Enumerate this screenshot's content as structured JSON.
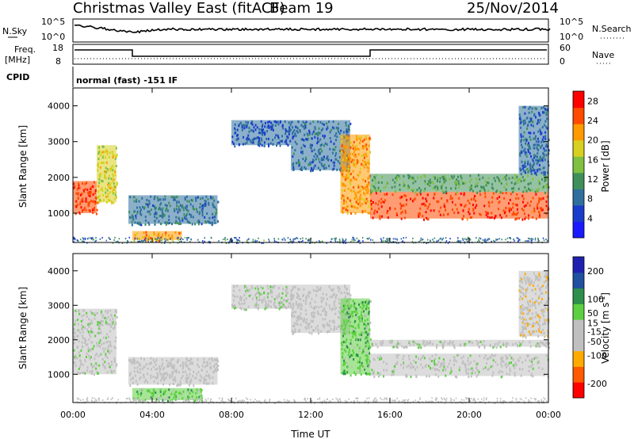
{
  "header": {
    "station_title": "Christmas Valley East (fitACF)",
    "beam_label": "Beam 19",
    "date": "25/Nov/2014"
  },
  "noise_panel": {
    "left_label": "N.Sky",
    "right_label": "N.Search",
    "ticks_left": [
      "10^5",
      "10^0"
    ],
    "ticks_right": [
      "10^5",
      "10^0"
    ]
  },
  "freq_panel": {
    "left_label_line1": "Freq.",
    "left_label_line2": "[MHz]",
    "right_label": "Nave",
    "ticks_left": [
      "18",
      "8"
    ],
    "ticks_right": [
      "60",
      "0"
    ]
  },
  "cpid": {
    "label": "CPID",
    "mode_text": "normal (fast) -151 IF"
  },
  "time_axis": {
    "label": "Time UT",
    "ticks": [
      "00:00",
      "04:00",
      "08:00",
      "12:00",
      "16:00",
      "20:00",
      "00:00"
    ]
  },
  "colors": {
    "power_scale": [
      "#1a1aff",
      "#1a3ccc",
      "#2e6f9e",
      "#3f8f5a",
      "#7fc040",
      "#d7d020",
      "#ff9a00",
      "#ff4a00",
      "#ff0000"
    ],
    "velocity_scale": [
      "#ff0000",
      "#ff5a00",
      "#ffaa00",
      "#c0c0c0",
      "#c0c0c0",
      "#5cd040",
      "#2e8f4a",
      "#2050a0",
      "#2020b0"
    ]
  },
  "chart_data": [
    {
      "type": "heatmap",
      "title": "",
      "xlabel": "Time UT",
      "ylabel": "Slant Range [km]",
      "xlim": [
        "00:00",
        "24:00"
      ],
      "ylim": [
        180,
        4500
      ],
      "y_ticks": [
        1000,
        2000,
        3000,
        4000
      ],
      "colorbar": {
        "label": "Power [dB]",
        "ticks": [
          4,
          8,
          12,
          16,
          20,
          24,
          28
        ],
        "range": [
          0,
          30
        ]
      },
      "regions": [
        {
          "t0": 0.0,
          "t1": 1.2,
          "r0": 1000,
          "r1": 1900,
          "value": 26
        },
        {
          "t0": 1.2,
          "t1": 2.2,
          "r0": 1300,
          "r1": 2900,
          "value": 18
        },
        {
          "t0": 2.8,
          "t1": 7.3,
          "r0": 700,
          "r1": 1500,
          "value": 9
        },
        {
          "t0": 3.0,
          "t1": 5.5,
          "r0": 250,
          "r1": 500,
          "value": 22
        },
        {
          "t0": 8.0,
          "t1": 11.0,
          "r0": 2900,
          "r1": 3600,
          "value": 7
        },
        {
          "t0": 11.0,
          "t1": 14.0,
          "r0": 2200,
          "r1": 3600,
          "value": 8
        },
        {
          "t0": 13.5,
          "t1": 15.0,
          "r0": 1000,
          "r1": 3200,
          "value": 22
        },
        {
          "t0": 15.0,
          "t1": 24.0,
          "r0": 850,
          "r1": 1600,
          "value": 26
        },
        {
          "t0": 15.0,
          "t1": 24.0,
          "r0": 1600,
          "r1": 2100,
          "value": 13
        },
        {
          "t0": 22.5,
          "t1": 24.0,
          "r0": 2100,
          "r1": 4000,
          "value": 8
        }
      ]
    },
    {
      "type": "heatmap",
      "title": "",
      "xlabel": "Time UT",
      "ylabel": "Slant Range [km]",
      "xlim": [
        "00:00",
        "24:00"
      ],
      "ylim": [
        180,
        4500
      ],
      "y_ticks": [
        1000,
        2000,
        3000,
        4000
      ],
      "colorbar": {
        "label": "Velocity [m s^-1]",
        "ticks": [
          -200,
          -100,
          -50,
          -15,
          15,
          50,
          100,
          200
        ],
        "range": [
          -250,
          250
        ]
      },
      "regions": [
        {
          "t0": 0.0,
          "t1": 2.2,
          "r0": 1000,
          "r1": 2900,
          "value": 0
        },
        {
          "t0": 2.8,
          "t1": 7.3,
          "r0": 700,
          "r1": 1500,
          "value": -20
        },
        {
          "t0": 3.0,
          "t1": 6.5,
          "r0": 250,
          "r1": 600,
          "value": 60
        },
        {
          "t0": 8.0,
          "t1": 11.0,
          "r0": 2900,
          "r1": 3600,
          "value": 0
        },
        {
          "t0": 11.0,
          "t1": 14.0,
          "r0": 2200,
          "r1": 3600,
          "value": -30
        },
        {
          "t0": 13.5,
          "t1": 15.0,
          "r0": 1000,
          "r1": 3200,
          "value": 60
        },
        {
          "t0": 15.0,
          "t1": 24.0,
          "r0": 950,
          "r1": 1600,
          "value": 0
        },
        {
          "t0": 15.0,
          "t1": 24.0,
          "r0": 1800,
          "r1": 2000,
          "value": 0
        },
        {
          "t0": 22.5,
          "t1": 24.0,
          "r0": 2100,
          "r1": 4000,
          "value": -60
        }
      ]
    }
  ]
}
